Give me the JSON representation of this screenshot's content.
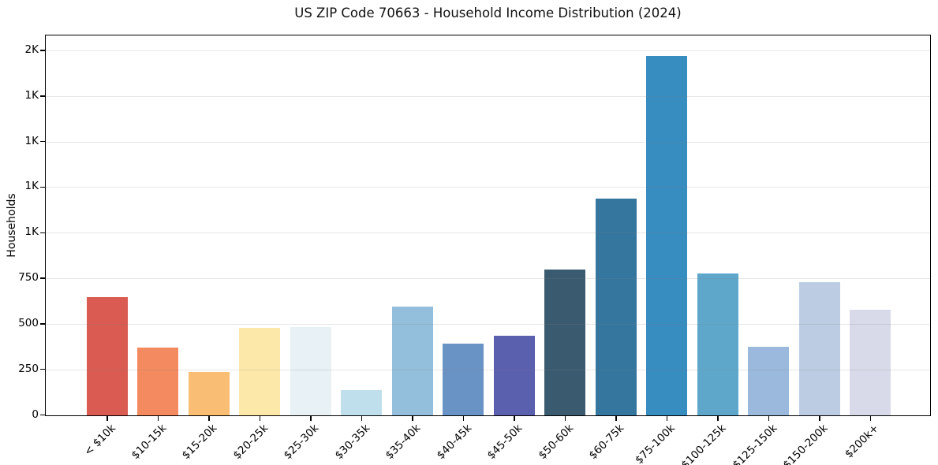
{
  "chart_data": {
    "type": "bar",
    "title": "US ZIP Code 70663 - Household Income Distribution (2024)",
    "xlabel": "",
    "ylabel": "Households",
    "categories": [
      "< $10k",
      "$10-15k",
      "$15-20k",
      "$20-25k",
      "$25-30k",
      "$30-35k",
      "$35-40k",
      "$40-45k",
      "$45-50k",
      "$50-60k",
      "$60-75k",
      "$75-100k",
      "$100-125k",
      "$125-150k",
      "$150-200k",
      "$200k+"
    ],
    "values": [
      650,
      370,
      240,
      480,
      485,
      140,
      595,
      395,
      435,
      800,
      1190,
      1970,
      780,
      375,
      730,
      580
    ],
    "bar_colors": [
      "#d95b52",
      "#f48a60",
      "#f9bd74",
      "#fce8a8",
      "#e7f1f6",
      "#bfdfec",
      "#93bfdd",
      "#6a93c5",
      "#5a5fae",
      "#3a5a70",
      "#35769f",
      "#378cc0",
      "#5ea7cb",
      "#9ab9dc",
      "#bccde3",
      "#d8dae9"
    ],
    "ylim": [
      0,
      2080
    ],
    "ytick_step": 250,
    "yticks": [
      {
        "value": 0,
        "label": "0"
      },
      {
        "value": 250,
        "label": "250"
      },
      {
        "value": 500,
        "label": "500"
      },
      {
        "value": 750,
        "label": "750"
      },
      {
        "value": 1000,
        "label": "1K"
      },
      {
        "value": 1250,
        "label": "1K"
      },
      {
        "value": 1500,
        "label": "1K"
      },
      {
        "value": 1750,
        "label": "1K"
      },
      {
        "value": 2000,
        "label": "2K"
      }
    ],
    "grid": "horizontal",
    "legend": "none",
    "colors": {
      "spine": "#000000",
      "grid": "#eaeaea",
      "text": "#000000",
      "background": "#ffffff"
    }
  }
}
